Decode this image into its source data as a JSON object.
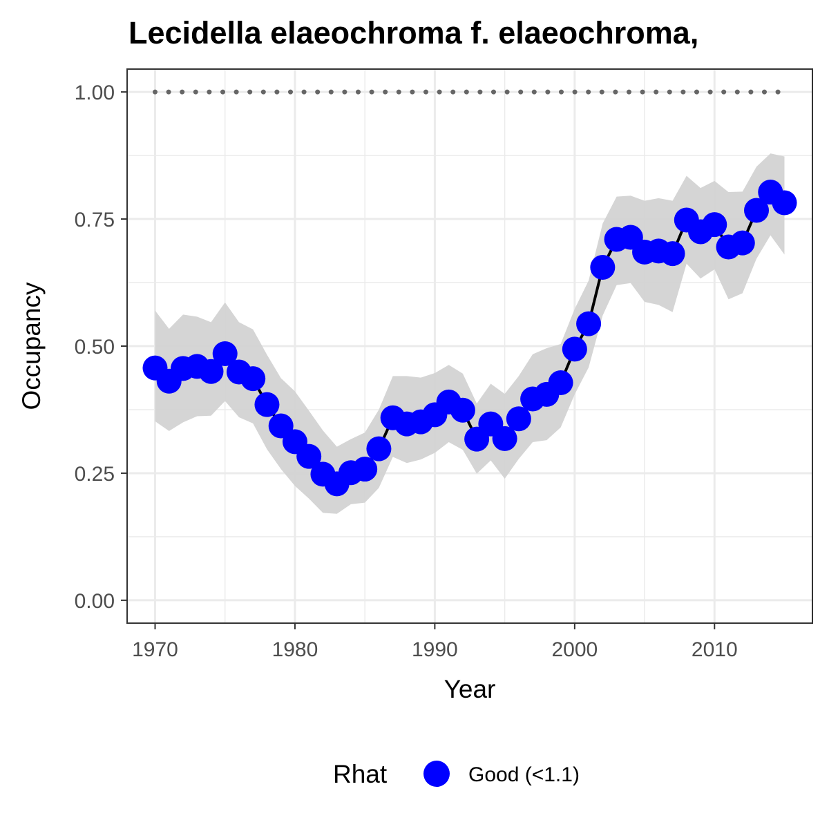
{
  "chart_data": {
    "type": "line",
    "title": "Lecidella elaeochroma f. elaeochroma,",
    "xlabel": "Year",
    "ylabel": "Occupancy",
    "xlim": [
      1968,
      2017
    ],
    "ylim": [
      -0.045,
      1.045
    ],
    "x_ticks": [
      1970,
      1980,
      1990,
      2000,
      2010
    ],
    "x_tick_labels": [
      "1970",
      "1980",
      "1990",
      "2000",
      "2010"
    ],
    "y_ticks": [
      0,
      0.25,
      0.5,
      0.75,
      1
    ],
    "y_tick_labels": [
      "0.00",
      "0.25",
      "0.50",
      "0.75",
      "1.00"
    ],
    "grid": true,
    "legend_position": "bottom",
    "legend": {
      "title": "Rhat",
      "entries": [
        {
          "label": "Good (<1.1)",
          "color": "#0000ff"
        }
      ]
    },
    "colors": {
      "points": "#0000ff",
      "line": "#000000",
      "ribbon": "#d3d3d3",
      "reference": "#666666"
    },
    "x": [
      1970,
      1971,
      1972,
      1973,
      1974,
      1975,
      1976,
      1977,
      1978,
      1979,
      1980,
      1981,
      1982,
      1983,
      1984,
      1985,
      1986,
      1987,
      1988,
      1989,
      1990,
      1991,
      1992,
      1993,
      1994,
      1995,
      1996,
      1997,
      1998,
      1999,
      2000,
      2001,
      2002,
      2003,
      2004,
      2005,
      2006,
      2007,
      2008,
      2009,
      2010,
      2011,
      2012,
      2013,
      2014,
      2015
    ],
    "series": [
      {
        "name": "Good (<1.1)",
        "values": [
          0.457,
          0.431,
          0.456,
          0.46,
          0.45,
          0.485,
          0.449,
          0.436,
          0.385,
          0.343,
          0.312,
          0.283,
          0.248,
          0.229,
          0.251,
          0.258,
          0.298,
          0.359,
          0.347,
          0.351,
          0.365,
          0.39,
          0.374,
          0.317,
          0.347,
          0.318,
          0.357,
          0.396,
          0.405,
          0.428,
          0.494,
          0.544,
          0.655,
          0.71,
          0.714,
          0.685,
          0.687,
          0.682,
          0.748,
          0.725,
          0.739,
          0.695,
          0.703,
          0.767,
          0.803,
          0.782
        ],
        "lower": [
          0.352,
          0.333,
          0.35,
          0.362,
          0.363,
          0.392,
          0.36,
          0.348,
          0.297,
          0.258,
          0.225,
          0.2,
          0.172,
          0.17,
          0.189,
          0.192,
          0.221,
          0.282,
          0.27,
          0.277,
          0.29,
          0.311,
          0.296,
          0.249,
          0.275,
          0.239,
          0.278,
          0.311,
          0.315,
          0.34,
          0.405,
          0.458,
          0.56,
          0.62,
          0.624,
          0.587,
          0.581,
          0.567,
          0.662,
          0.633,
          0.651,
          0.592,
          0.604,
          0.672,
          0.718,
          0.68
        ],
        "upper": [
          0.57,
          0.534,
          0.562,
          0.558,
          0.547,
          0.586,
          0.547,
          0.533,
          0.483,
          0.437,
          0.411,
          0.373,
          0.334,
          0.302,
          0.317,
          0.33,
          0.375,
          0.441,
          0.441,
          0.438,
          0.447,
          0.463,
          0.446,
          0.387,
          0.426,
          0.406,
          0.441,
          0.484,
          0.496,
          0.504,
          0.573,
          0.629,
          0.741,
          0.794,
          0.796,
          0.786,
          0.791,
          0.786,
          0.835,
          0.811,
          0.825,
          0.803,
          0.804,
          0.853,
          0.879,
          0.873
        ]
      }
    ],
    "reference_line": {
      "y": 1.0,
      "style": "dotted"
    }
  }
}
